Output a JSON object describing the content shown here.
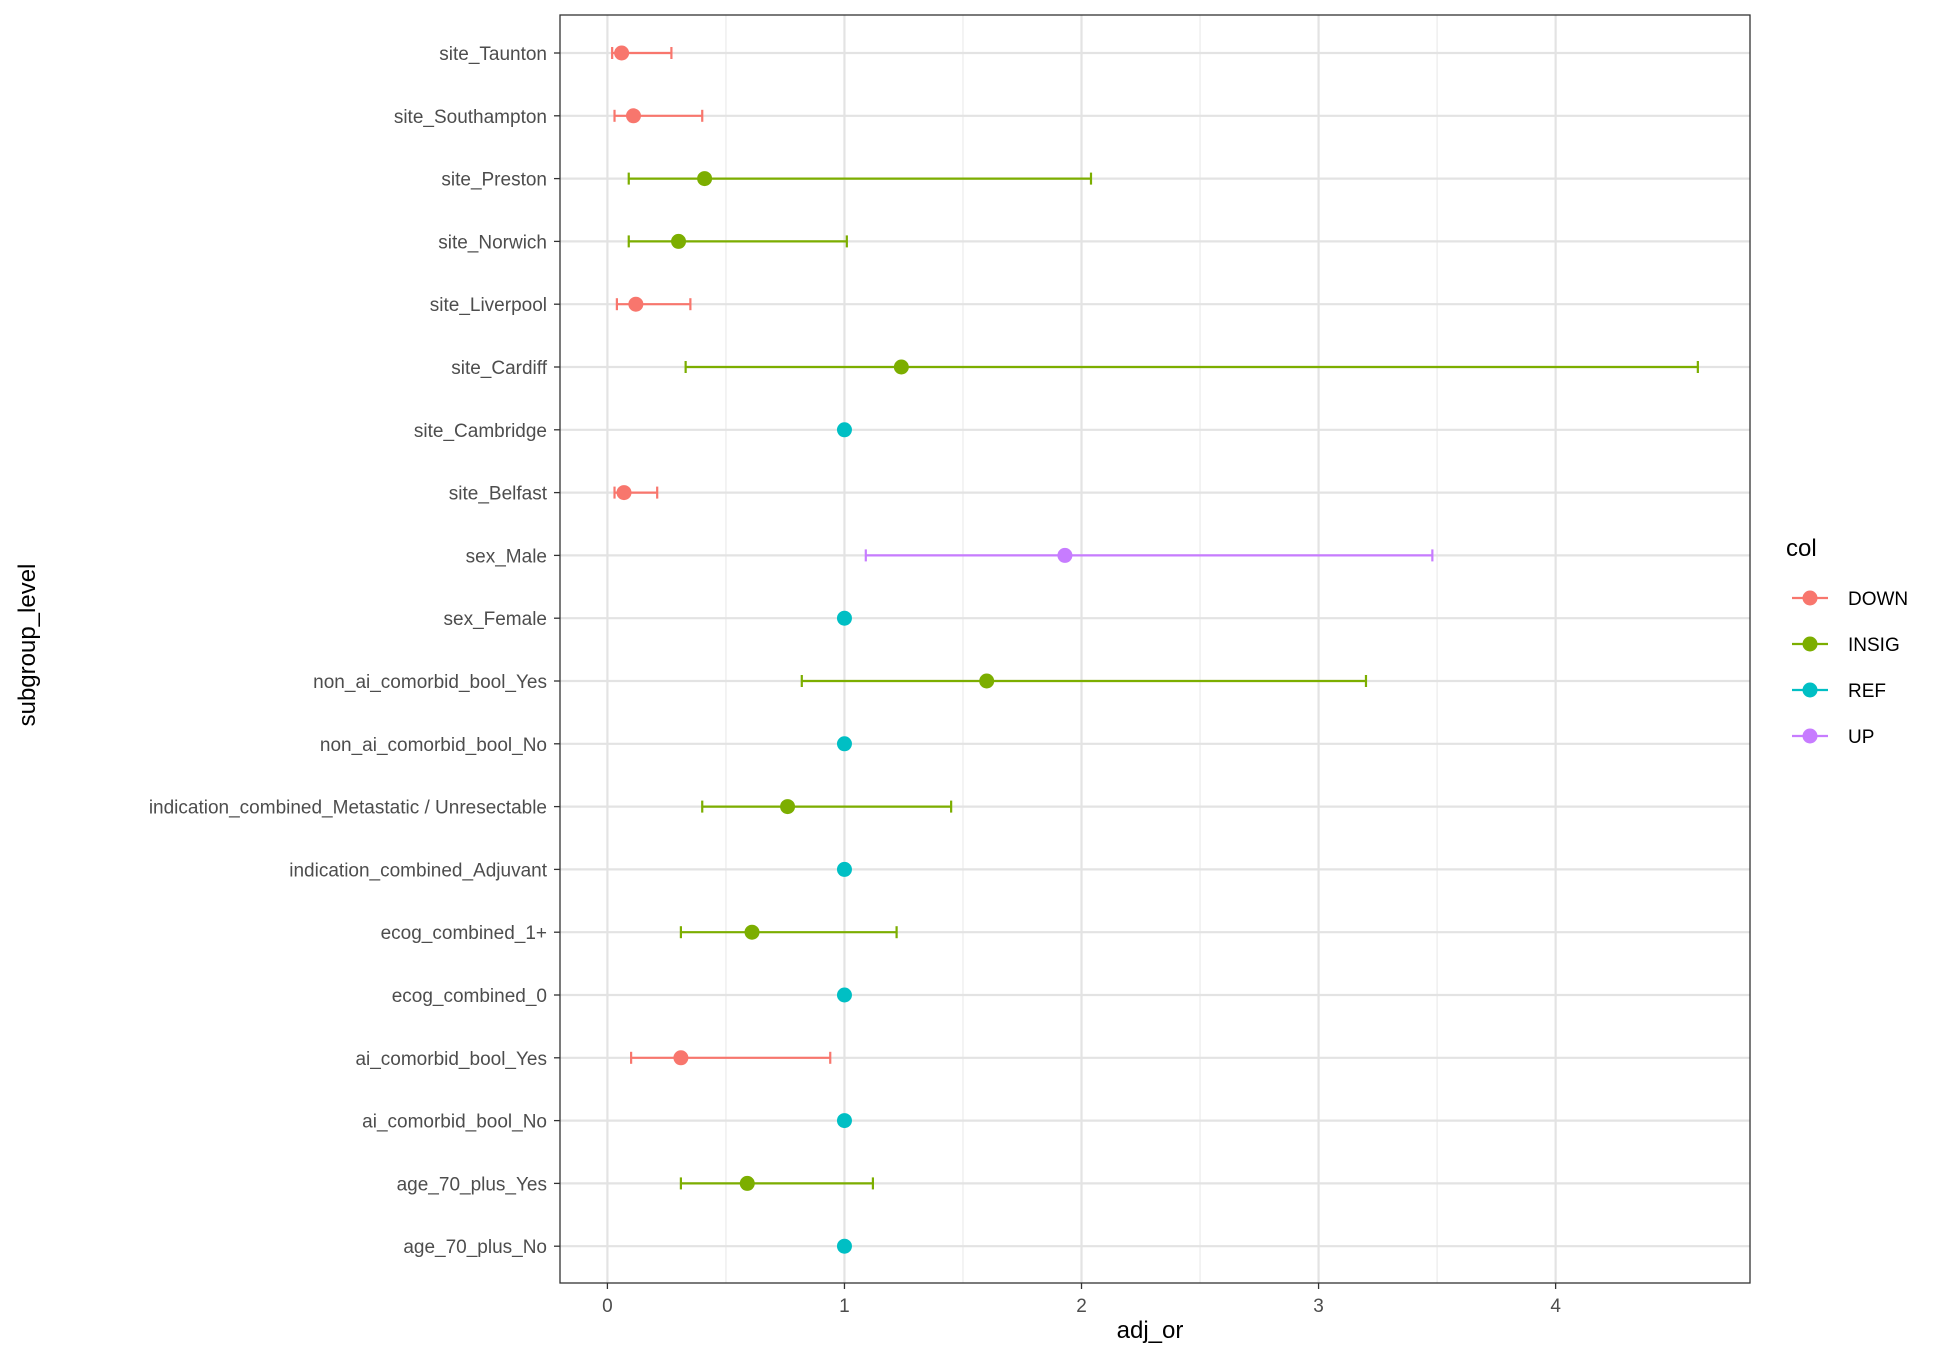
{
  "chart_data": {
    "type": "scatter",
    "subtype": "forest-plot-with-error-bars",
    "xlabel": "adj_or",
    "ylabel": "subgroup_level",
    "xlim": [
      -0.2,
      4.82
    ],
    "xticks": [
      0,
      1,
      2,
      3,
      4
    ],
    "grid": true,
    "legend": {
      "title": "col",
      "position": "right"
    },
    "colors": {
      "DOWN": "#F8766D",
      "INSIG": "#7CAE00",
      "REF": "#00BFC4",
      "UP": "#C77CFF"
    },
    "categories": [
      "site_Taunton",
      "site_Southampton",
      "site_Preston",
      "site_Norwich",
      "site_Liverpool",
      "site_Cardiff",
      "site_Cambridge",
      "site_Belfast",
      "sex_Male",
      "sex_Female",
      "non_ai_comorbid_bool_Yes",
      "non_ai_comorbid_bool_No",
      "indication_combined_Metastatic / Unresectable",
      "indication_combined_Adjuvant",
      "ecog_combined_1+",
      "ecog_combined_0",
      "ai_comorbid_bool_Yes",
      "ai_comorbid_bool_No",
      "age_70_plus_Yes",
      "age_70_plus_No"
    ],
    "series": [
      {
        "name": "DOWN",
        "points": [
          {
            "label": "site_Taunton",
            "x": 0.06,
            "lo": 0.02,
            "hi": 0.27
          },
          {
            "label": "site_Southampton",
            "x": 0.11,
            "lo": 0.03,
            "hi": 0.4
          },
          {
            "label": "site_Liverpool",
            "x": 0.12,
            "lo": 0.04,
            "hi": 0.35
          },
          {
            "label": "site_Belfast",
            "x": 0.07,
            "lo": 0.03,
            "hi": 0.21
          },
          {
            "label": "ai_comorbid_bool_Yes",
            "x": 0.31,
            "lo": 0.1,
            "hi": 0.94
          }
        ]
      },
      {
        "name": "INSIG",
        "points": [
          {
            "label": "site_Preston",
            "x": 0.41,
            "lo": 0.09,
            "hi": 2.04
          },
          {
            "label": "site_Norwich",
            "x": 0.3,
            "lo": 0.09,
            "hi": 1.01
          },
          {
            "label": "site_Cardiff",
            "x": 1.24,
            "lo": 0.33,
            "hi": 4.6
          },
          {
            "label": "non_ai_comorbid_bool_Yes",
            "x": 1.6,
            "lo": 0.82,
            "hi": 3.2
          },
          {
            "label": "indication_combined_Metastatic / Unresectable",
            "x": 0.76,
            "lo": 0.4,
            "hi": 1.45
          },
          {
            "label": "ecog_combined_1+",
            "x": 0.61,
            "lo": 0.31,
            "hi": 1.22
          },
          {
            "label": "age_70_plus_Yes",
            "x": 0.59,
            "lo": 0.31,
            "hi": 1.12
          }
        ]
      },
      {
        "name": "REF",
        "points": [
          {
            "label": "site_Cambridge",
            "x": 1.0
          },
          {
            "label": "sex_Female",
            "x": 1.0
          },
          {
            "label": "non_ai_comorbid_bool_No",
            "x": 1.0
          },
          {
            "label": "indication_combined_Adjuvant",
            "x": 1.0
          },
          {
            "label": "ecog_combined_0",
            "x": 1.0
          },
          {
            "label": "ai_comorbid_bool_No",
            "x": 1.0
          },
          {
            "label": "age_70_plus_No",
            "x": 1.0
          }
        ]
      },
      {
        "name": "UP",
        "points": [
          {
            "label": "sex_Male",
            "x": 1.93,
            "lo": 1.09,
            "hi": 3.48
          }
        ]
      }
    ]
  }
}
